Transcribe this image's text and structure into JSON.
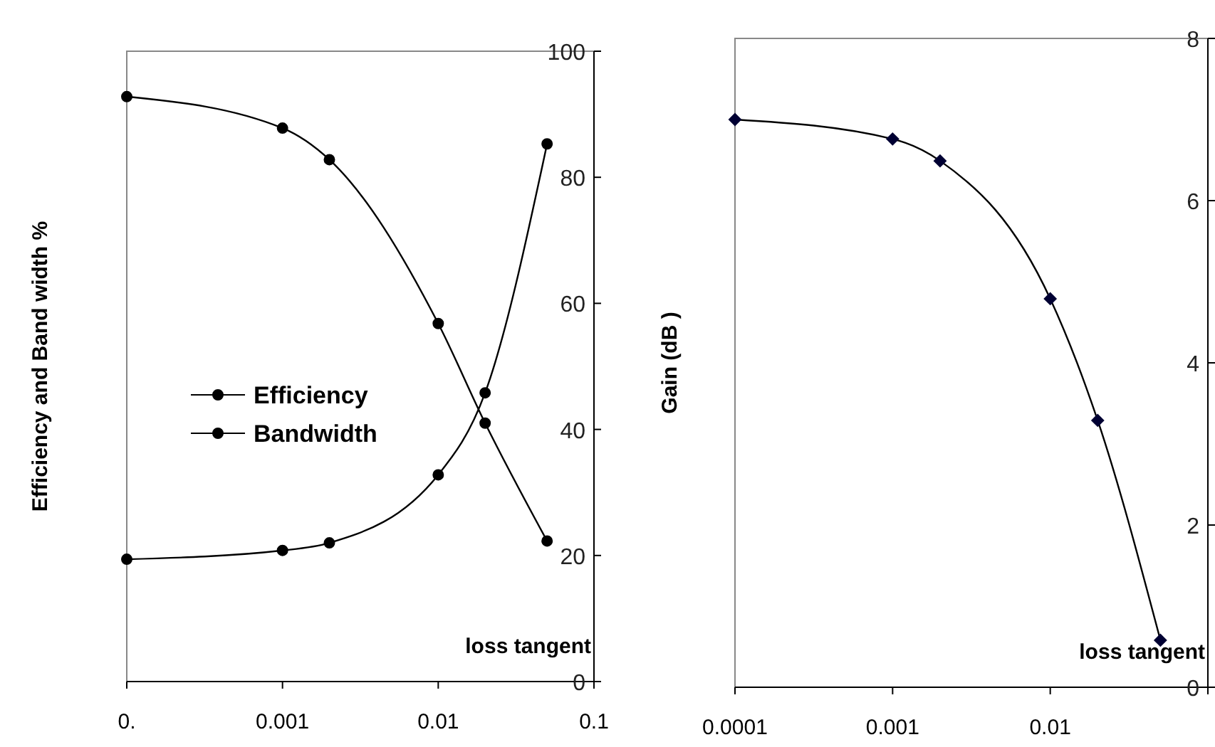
{
  "chart_data": [
    {
      "type": "line",
      "xlabel": "loss tangent",
      "ylabel": "Efficiency and Band width %",
      "log": "x",
      "x": [
        0.0001,
        0.001,
        0.002,
        0.01,
        0.02,
        0.05
      ],
      "xlim": [
        0.0001,
        0.1
      ],
      "xticks": [
        {
          "value": 0.0001,
          "label": "0."
        },
        0.001,
        0.01,
        0.1
      ],
      "ylim": [
        0,
        100
      ],
      "yticks": [
        0,
        20,
        40,
        60,
        80,
        100
      ],
      "marker": "circle",
      "legend": "left",
      "grid": false,
      "series": [
        {
          "name": "Efficiency",
          "color": "#000000",
          "values": [
            92.8,
            87.8,
            82.8,
            56.8,
            41.0,
            22.3
          ]
        },
        {
          "name": "Bandwidth",
          "color": "#000000",
          "values": [
            19.4,
            20.8,
            22.0,
            32.8,
            45.8,
            85.3
          ]
        }
      ]
    },
    {
      "type": "line",
      "xlabel": "loss tangent",
      "ylabel": "Gain (dB )",
      "log": "x",
      "x": [
        0.0001,
        0.001,
        0.002,
        0.01,
        0.02,
        0.05
      ],
      "xlim": [
        0.0001,
        0.1
      ],
      "xticks": [
        0.0001,
        0.001,
        0.01,
        {
          "value": 0.1,
          "label": null
        }
      ],
      "ylim": [
        0,
        8
      ],
      "yticks": [
        0,
        2,
        4,
        6,
        8
      ],
      "marker": "diamond",
      "legend": false,
      "grid": false,
      "series": [
        {
          "color": "#000033",
          "values": [
            7.0,
            6.76,
            6.49,
            4.79,
            3.29,
            0.58
          ]
        }
      ]
    }
  ]
}
